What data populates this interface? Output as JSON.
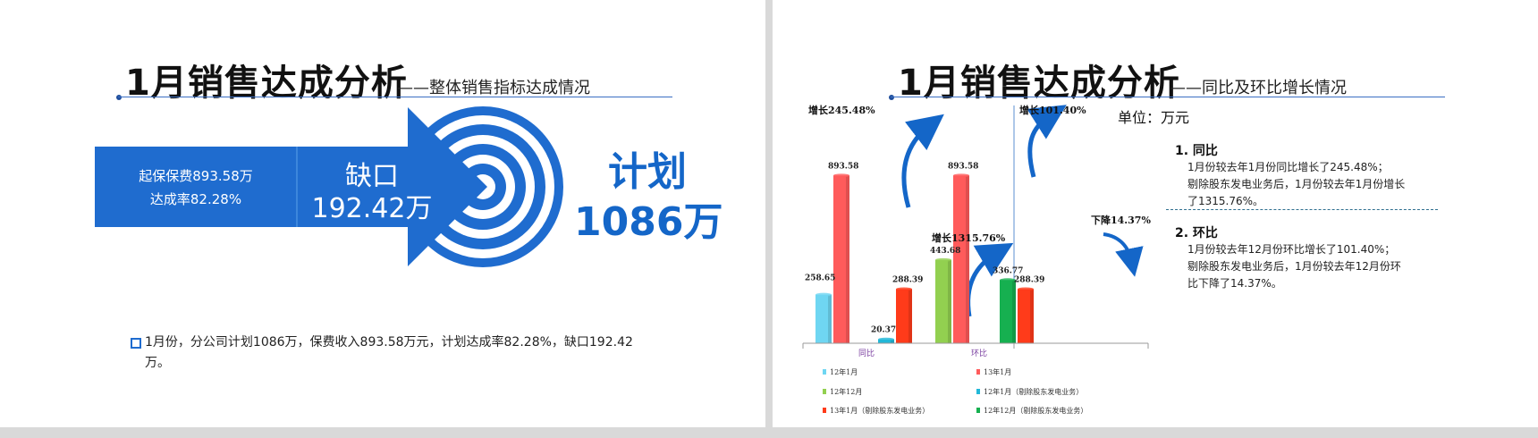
{
  "left": {
    "title": "1月销售达成分析",
    "subtitle": "——整体销售指标达成情况",
    "band_line1": "起保保费893.58万",
    "band_line2": "达成率82.28%",
    "gap_label": "缺口",
    "gap_value": "192.42万",
    "plan_label": "计划",
    "plan_value": "1086万",
    "bullet": "1月份，分公司计划1086万，保费收入893.58万元，计划达成率82.28%，缺口192.42万。",
    "colors": {
      "accent": "#1f6ccf",
      "plan_text": "#1466c8"
    }
  },
  "right": {
    "title": "1月销售达成分析",
    "subtitle": "——同比及环比增长情况",
    "unit": "单位：万元",
    "annotations": {
      "yoy_growth": "增长245.48%",
      "qoq_growth": "增长101.40%",
      "yoy_ex_growth": "增长1315.76%",
      "qoq_ex_decline": "下降14.37%"
    },
    "section1": {
      "title": "1. 同比",
      "line1": "1月份较去年1月份同比增长了245.48%；",
      "line2": "剔除股东发电业务后，1月份较去年1月份增长",
      "line3": "了1315.76%。"
    },
    "section2": {
      "title": "2. 环比",
      "line1": "1月份较去年12月份环比增长了101.40%；",
      "line2": "剔除股东发电业务后，1月份较去年12月份环",
      "line3": "比下降了14.37%。"
    },
    "colors": {
      "arrow": "#1466c8",
      "divider": "#2f6f8f"
    }
  },
  "chart_data": {
    "type": "bar",
    "categories": [
      "同比",
      "环比"
    ],
    "series": [
      {
        "name": "12年1月",
        "color": "#6fd6f2",
        "values": [
          258.65,
          null
        ]
      },
      {
        "name": "13年1月",
        "color": "#ff5b5b",
        "values": [
          893.58,
          893.58
        ]
      },
      {
        "name": "12年12月",
        "color": "#92d050",
        "values": [
          null,
          443.68
        ]
      },
      {
        "name": "12年1月（剔除股东发电业务）",
        "color": "#22b8d8",
        "values": [
          20.37,
          null
        ]
      },
      {
        "name": "13年1月（剔除股东发电业务）",
        "color": "#ff3b1a",
        "values": [
          288.39,
          288.39
        ]
      },
      {
        "name": "12年12月（剔除股东发电业务）",
        "color": "#16b050",
        "values": [
          null,
          336.77
        ]
      }
    ],
    "data_labels": {
      "yoy_2012_jan": "258.65",
      "yoy_2013_jan": "893.58",
      "yoy_2012_jan_ex": "20.37",
      "yoy_2013_jan_ex": "288.39",
      "qoq_2012_dec": "443.68",
      "qoq_2013_jan": "893.58",
      "qoq_2012_dec_ex": "336.77",
      "qoq_2013_jan_ex": "288.39"
    },
    "ylim": [
      0,
      1000
    ],
    "legend_position": "bottom",
    "grid": false
  }
}
